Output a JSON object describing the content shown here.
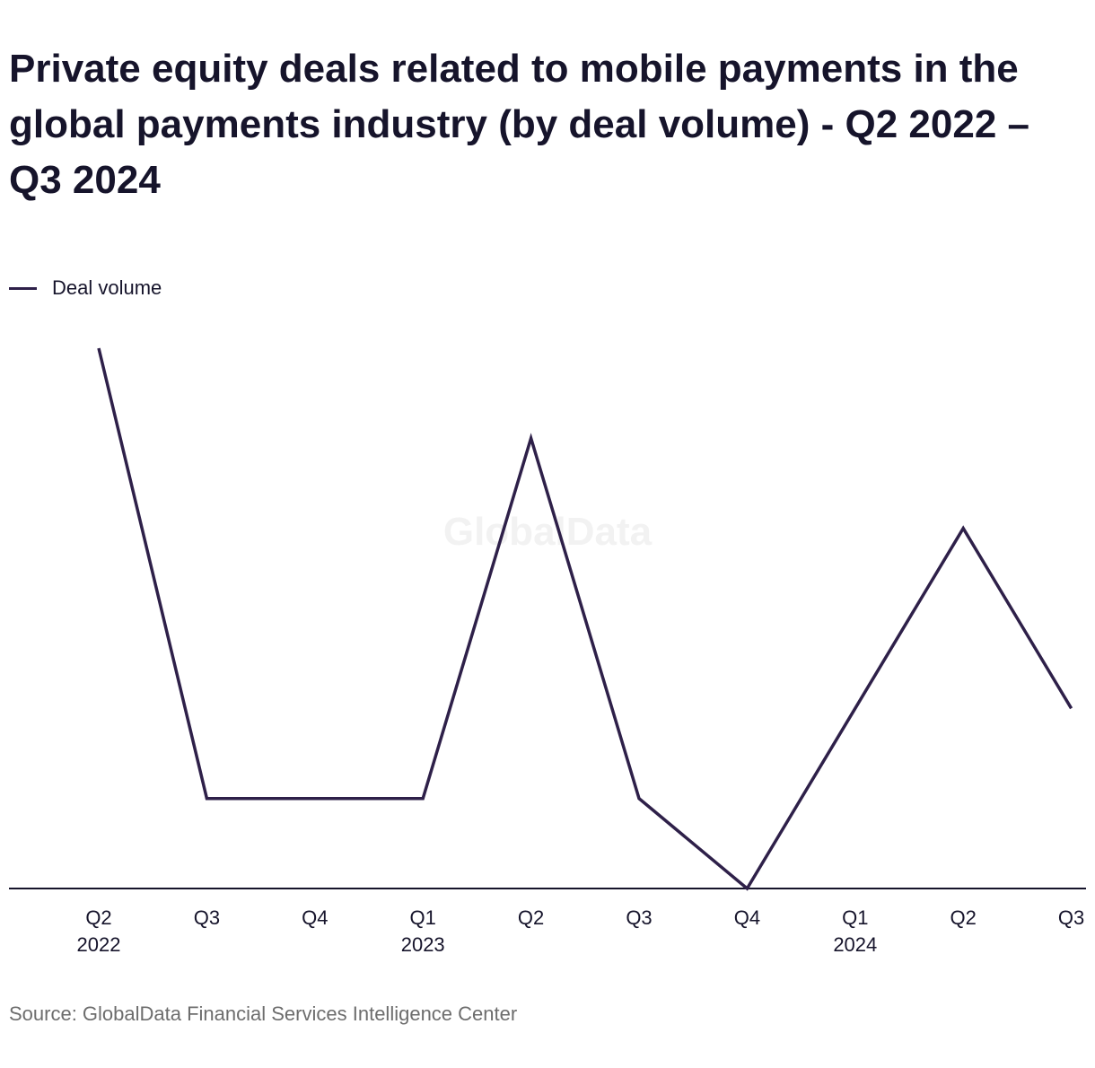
{
  "title": "Private equity deals related to mobile payments in the global payments industry (by deal volume) - Q2 2022 – Q3 2024",
  "watermark": "GlobalData",
  "source": "Source: GlobalData Financial Services Intelligence Center",
  "colors": {
    "line": "#2e2049",
    "axis": "#16142b",
    "text": "#16142b",
    "source": "#6d6d6d"
  },
  "chart_data": {
    "type": "line",
    "title": "Private equity deals related to mobile payments in the global payments industry (by deal volume) - Q2 2022 – Q3 2024",
    "categories": [
      "Q2",
      "Q3",
      "Q4",
      "Q1",
      "Q2",
      "Q3",
      "Q4",
      "Q1",
      "Q2",
      "Q3"
    ],
    "year_labels": [
      "2022",
      "",
      "",
      "2023",
      "",
      "",
      "",
      "2024",
      "",
      ""
    ],
    "series": [
      {
        "name": "Deal volume",
        "values": [
          6,
          1,
          1,
          1,
          5,
          1,
          0,
          2,
          4,
          2
        ]
      }
    ],
    "ylim": [
      0,
      6
    ],
    "y_axis_visible": false,
    "grid": false,
    "legend": "top-left",
    "xlabel": "",
    "ylabel": ""
  }
}
